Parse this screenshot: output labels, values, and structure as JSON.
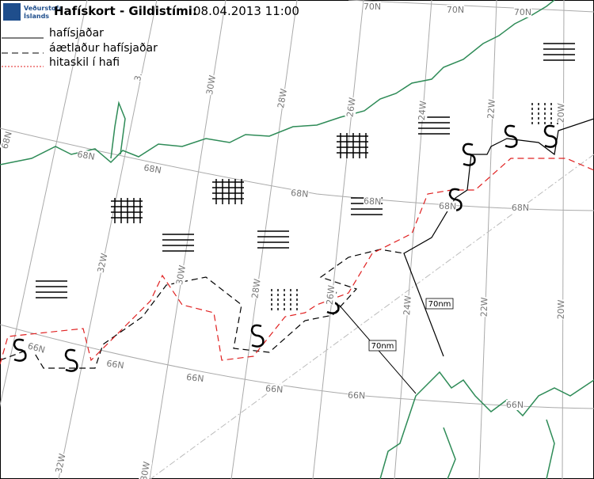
{
  "header": {
    "logo_line1": "Veðurstofa",
    "logo_line2": "Íslands",
    "title": "Hafískort - Gildistími:",
    "valid_time": "08.04.2013 11:00"
  },
  "legend": [
    "hafísjaðar",
    "áætlaður hafísjaðar",
    "hitaskil í hafi"
  ],
  "grid_labels": [
    "70N",
    "70N",
    "70N",
    "68N",
    "68N",
    "68N",
    "68N",
    "68N",
    "68N",
    "68N",
    "66N",
    "66N",
    "66N",
    "66N",
    "66N",
    "66N",
    "3.",
    "30W",
    "28W",
    "26W",
    "24W",
    "22W",
    "20W",
    "32W",
    "30W",
    "28W",
    "26W",
    "24W",
    "22W",
    "20W",
    "32W",
    "30W"
  ],
  "distance_labels": [
    "70nm",
    "70nm"
  ]
}
